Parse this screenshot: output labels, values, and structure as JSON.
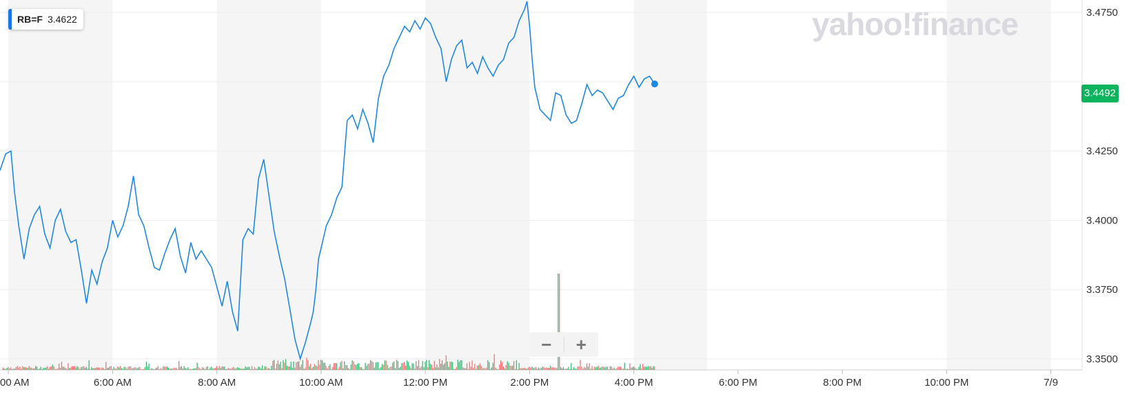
{
  "legend": {
    "symbol": "RB=F",
    "value": "3.4622",
    "color": "#1976e6"
  },
  "watermark": {
    "text": "yahoo!finance"
  },
  "price_badge": {
    "value": "3.4492",
    "color": "#0bb35c"
  },
  "zoom": {
    "minus_label": "−",
    "plus_label": "+"
  },
  "chart_data": {
    "type": "line",
    "symbol": "RB=F",
    "x_tick_labels": [
      "00 AM",
      "6:00 AM",
      "8:00 AM",
      "10:00 AM",
      "12:00 PM",
      "2:00 PM",
      "4:00 PM",
      "6:00 PM",
      "8:00 PM",
      "10:00 PM",
      "7/9"
    ],
    "x_tick_hours": [
      4,
      6,
      8,
      10,
      12,
      14,
      16,
      18,
      20,
      22,
      24
    ],
    "xlim": [
      3.84,
      24.6
    ],
    "ylim": [
      3.346,
      3.4795
    ],
    "y_ticks": [
      3.35,
      3.375,
      3.4,
      3.425,
      3.45,
      3.475
    ],
    "y_tick_labels": [
      "3.3500",
      "3.3750",
      "3.4000",
      "3.4250",
      "",
      "3.4750"
    ],
    "grid": true,
    "shaded_bands_hours": [
      [
        4,
        6
      ],
      [
        8,
        10
      ],
      [
        12,
        14
      ],
      [
        16,
        17.4
      ],
      [
        22,
        24
      ]
    ],
    "last_value": 3.4492,
    "last_time_hour": 16.4,
    "series": [
      {
        "color": "#1e88e5",
        "x": [
          3.84,
          3.95,
          4.05,
          4.12,
          4.2,
          4.3,
          4.4,
          4.5,
          4.6,
          4.7,
          4.8,
          4.9,
          5.0,
          5.1,
          5.2,
          5.3,
          5.4,
          5.5,
          5.6,
          5.7,
          5.8,
          5.9,
          6.0,
          6.1,
          6.2,
          6.3,
          6.4,
          6.5,
          6.6,
          6.7,
          6.8,
          6.9,
          7.0,
          7.1,
          7.2,
          7.3,
          7.4,
          7.5,
          7.6,
          7.7,
          7.8,
          7.9,
          8.0,
          8.1,
          8.2,
          8.3,
          8.4,
          8.5,
          8.6,
          8.7,
          8.8,
          8.9,
          9.0,
          9.1,
          9.2,
          9.3,
          9.4,
          9.5,
          9.6,
          9.7,
          9.8,
          9.85,
          9.9,
          9.95,
          10.0,
          10.1,
          10.2,
          10.3,
          10.4,
          10.5,
          10.6,
          10.7,
          10.8,
          10.9,
          11.0,
          11.1,
          11.2,
          11.3,
          11.4,
          11.5,
          11.6,
          11.7,
          11.8,
          11.9,
          12.0,
          12.1,
          12.2,
          12.3,
          12.4,
          12.5,
          12.6,
          12.7,
          12.8,
          12.9,
          13.0,
          13.1,
          13.2,
          13.3,
          13.4,
          13.5,
          13.6,
          13.7,
          13.8,
          13.9,
          13.95,
          14.0,
          14.05,
          14.1,
          14.2,
          14.3,
          14.4,
          14.5,
          14.6,
          14.7,
          14.8,
          14.9,
          15.0,
          15.1,
          15.2,
          15.3,
          15.4,
          15.5,
          15.6,
          15.7,
          15.8,
          15.9,
          16.0,
          16.1,
          16.2,
          16.3,
          16.4
        ],
        "y": [
          3.418,
          3.424,
          3.425,
          3.41,
          3.398,
          3.386,
          3.397,
          3.402,
          3.405,
          3.395,
          3.39,
          3.4,
          3.404,
          3.396,
          3.392,
          3.393,
          3.382,
          3.37,
          3.382,
          3.377,
          3.385,
          3.39,
          3.4,
          3.394,
          3.398,
          3.405,
          3.416,
          3.402,
          3.398,
          3.39,
          3.383,
          3.382,
          3.388,
          3.393,
          3.397,
          3.387,
          3.381,
          3.392,
          3.386,
          3.389,
          3.386,
          3.383,
          3.376,
          3.369,
          3.378,
          3.367,
          3.36,
          3.393,
          3.397,
          3.395,
          3.415,
          3.422,
          3.409,
          3.396,
          3.387,
          3.379,
          3.368,
          3.357,
          3.35,
          3.356,
          3.363,
          3.367,
          3.375,
          3.386,
          3.39,
          3.398,
          3.402,
          3.408,
          3.412,
          3.436,
          3.438,
          3.433,
          3.44,
          3.435,
          3.428,
          3.444,
          3.452,
          3.456,
          3.462,
          3.466,
          3.47,
          3.468,
          3.472,
          3.469,
          3.473,
          3.471,
          3.466,
          3.462,
          3.45,
          3.458,
          3.463,
          3.465,
          3.455,
          3.457,
          3.453,
          3.459,
          3.455,
          3.452,
          3.456,
          3.458,
          3.464,
          3.466,
          3.472,
          3.476,
          3.479,
          3.47,
          3.458,
          3.448,
          3.44,
          3.438,
          3.436,
          3.446,
          3.445,
          3.438,
          3.435,
          3.436,
          3.442,
          3.449,
          3.445,
          3.447,
          3.446,
          3.443,
          3.44,
          3.444,
          3.445,
          3.449,
          3.452,
          3.448,
          3.451,
          3.452,
          3.4492
        ]
      }
    ],
    "volume": {
      "colors": {
        "up": "#2db36a",
        "down": "#f06b6b"
      }
    }
  }
}
